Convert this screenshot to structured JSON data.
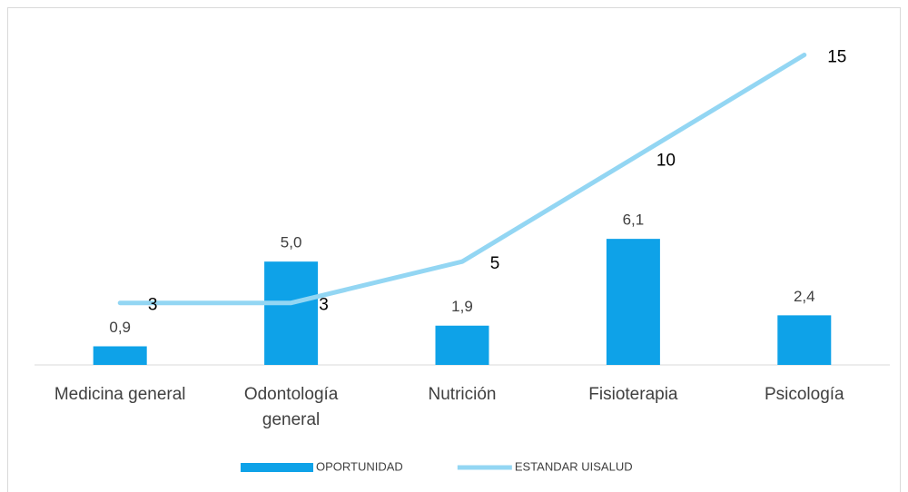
{
  "chart_data": {
    "type": "bar-line",
    "categories": [
      "Medicina general",
      "Odontología general",
      "Nutrición",
      "Fisioterapia",
      "Psicología"
    ],
    "series": [
      {
        "name": "OPORTUNIDAD",
        "type": "bar",
        "color": "#0ea2e8",
        "values": [
          0.9,
          5.0,
          1.9,
          6.1,
          2.4
        ],
        "value_labels": [
          "0,9",
          "5,0",
          "1,9",
          "6,1",
          "2,4"
        ]
      },
      {
        "name": "ESTANDAR UISALUD",
        "type": "line",
        "color": "#93d6f3",
        "values": [
          3,
          3,
          5,
          10,
          15
        ]
      }
    ],
    "ylim": [
      0,
      17
    ],
    "legend": "bottom"
  }
}
